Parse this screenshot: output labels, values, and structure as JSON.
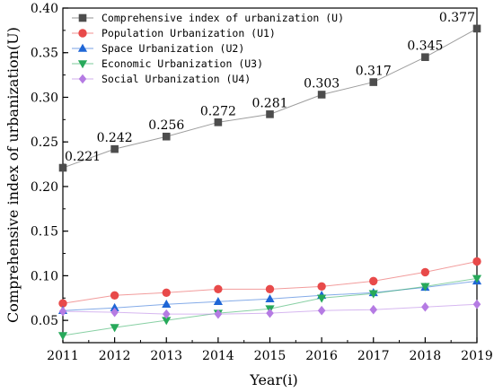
{
  "chart_data": {
    "type": "line",
    "xlabel": "Year(i)",
    "ylabel": "Comprehensive index of urbanization(U)",
    "x": [
      2011,
      2012,
      2013,
      2014,
      2015,
      2016,
      2017,
      2018,
      2019
    ],
    "x_ticks": [
      "2011",
      "2012",
      "2013",
      "2014",
      "2015",
      "2016",
      "2017",
      "2018",
      "2019"
    ],
    "ylim": [
      0.025,
      0.4
    ],
    "y_ticks": [
      "0.05",
      "0.10",
      "0.15",
      "0.20",
      "0.25",
      "0.30",
      "0.35",
      "0.40"
    ],
    "grid": false,
    "legend_position": "top-left",
    "series": [
      {
        "name": "Comprehensive index of urbanization (U)",
        "color": "#4d4d4d",
        "marker": "square",
        "values": [
          0.221,
          0.242,
          0.256,
          0.272,
          0.281,
          0.303,
          0.317,
          0.345,
          0.377
        ],
        "data_labels": [
          "0.221",
          "0.242",
          "0.256",
          "0.272",
          "0.281",
          "0.303",
          "0.317",
          "0.345",
          "0.377"
        ]
      },
      {
        "name": "Population Urbanization (U1)",
        "color": "#e84a4a",
        "marker": "circle",
        "values": [
          0.069,
          0.078,
          0.081,
          0.085,
          0.085,
          0.088,
          0.094,
          0.104,
          0.116
        ]
      },
      {
        "name": "Space Urbanization (U2)",
        "color": "#1f66d6",
        "marker": "triangle-up",
        "values": [
          0.061,
          0.064,
          0.068,
          0.071,
          0.074,
          0.078,
          0.081,
          0.087,
          0.094
        ]
      },
      {
        "name": "Economic Urbanization (U3)",
        "color": "#27a95a",
        "marker": "triangle-down",
        "values": [
          0.033,
          0.042,
          0.05,
          0.058,
          0.063,
          0.075,
          0.08,
          0.088,
          0.097
        ]
      },
      {
        "name": "Social Urbanization (U4)",
        "color": "#b57be3",
        "marker": "diamond",
        "values": [
          0.06,
          0.059,
          0.057,
          0.057,
          0.058,
          0.061,
          0.062,
          0.065,
          0.068
        ]
      }
    ]
  }
}
